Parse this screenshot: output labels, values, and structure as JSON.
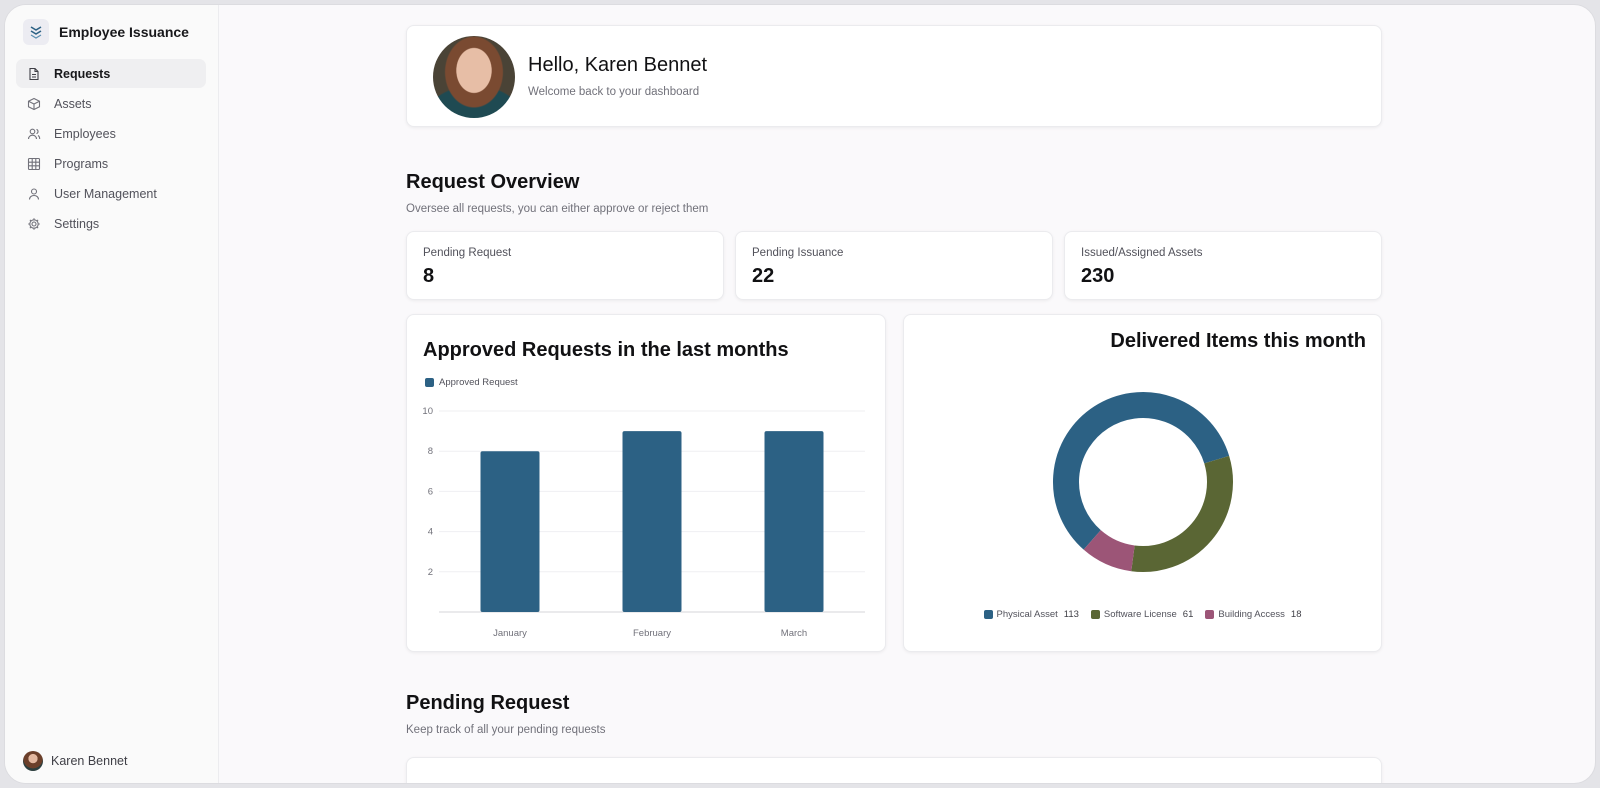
{
  "app": {
    "name": "Employee Issuance"
  },
  "sidebar": {
    "items": [
      {
        "label": "Requests",
        "icon": "document-icon"
      },
      {
        "label": "Assets",
        "icon": "box-icon"
      },
      {
        "label": "Employees",
        "icon": "users-icon"
      },
      {
        "label": "Programs",
        "icon": "grid-icon"
      },
      {
        "label": "User Management",
        "icon": "user-icon"
      },
      {
        "label": "Settings",
        "icon": "gear-icon"
      }
    ],
    "user_name": "Karen Bennet"
  },
  "greeting": {
    "title": "Hello, Karen Bennet",
    "subtitle": "Welcome back to your dashboard"
  },
  "overview": {
    "title": "Request Overview",
    "subtitle": "Oversee all requests, you can either approve or reject them",
    "stats": [
      {
        "label": "Pending Request",
        "value": "8"
      },
      {
        "label": "Pending Issuance",
        "value": "22"
      },
      {
        "label": "Issued/Assigned Assets",
        "value": "230"
      }
    ]
  },
  "pending": {
    "title": "Pending Request",
    "subtitle": "Keep track of all your pending requests"
  },
  "colors": {
    "primary": "#2c6184",
    "olive": "#5a6634",
    "mauve": "#9c5577"
  },
  "chart_data": [
    {
      "type": "bar",
      "title": "Approved Requests in the last months",
      "categories": [
        "January",
        "February",
        "March"
      ],
      "series": [
        {
          "name": "Approved Request",
          "values": [
            8,
            9,
            9
          ],
          "color": "#2c6184"
        }
      ],
      "yticks": [
        "2",
        "4",
        "6",
        "8",
        "10"
      ],
      "ylim": [
        0,
        10
      ],
      "grid": true,
      "legend": "top-left"
    },
    {
      "type": "pie",
      "title": "Delivered Items this month",
      "donut": true,
      "slices": [
        {
          "label": "Physical Asset",
          "value": 113,
          "color": "#2c6184"
        },
        {
          "label": "Software License",
          "value": 61,
          "color": "#5a6634"
        },
        {
          "label": "Building Access",
          "value": 18,
          "color": "#9c5577"
        }
      ],
      "legend": "bottom"
    }
  ]
}
